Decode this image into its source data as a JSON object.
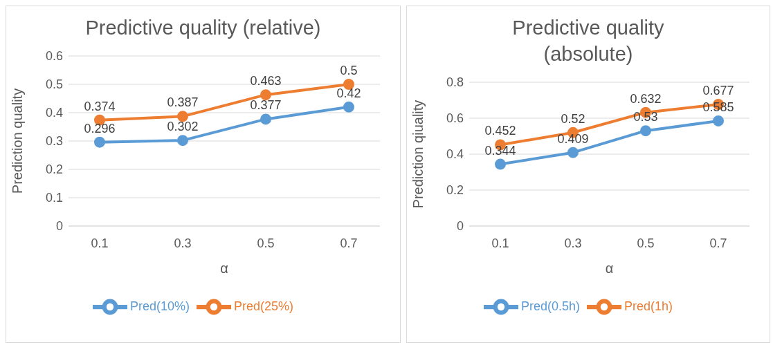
{
  "chart_data": [
    {
      "type": "line",
      "title": "Predictive quality (relative)",
      "xlabel": "α",
      "ylabel": "Prediction quality",
      "categories": [
        "0.1",
        "0.3",
        "0.5",
        "0.7"
      ],
      "series": [
        {
          "name": "Pred(10%)",
          "color": "#5b9bd5",
          "values": [
            0.296,
            0.302,
            0.377,
            0.42
          ]
        },
        {
          "name": "Pred(25%)",
          "color": "#ed7d31",
          "values": [
            0.374,
            0.387,
            0.463,
            0.5
          ]
        }
      ],
      "ylim": [
        0,
        0.6
      ],
      "yticks": [
        0,
        0.1,
        0.2,
        0.3,
        0.4,
        0.5,
        0.6
      ],
      "grid": "y",
      "legend": "bottom",
      "marker": "circle",
      "line_style": "solid",
      "data_labels": true
    },
    {
      "type": "line",
      "title": "Predictive quality (absolute)",
      "xlabel": "α",
      "ylabel": "Prediction qiuality",
      "categories": [
        "0.1",
        "0.3",
        "0.5",
        "0.7"
      ],
      "series": [
        {
          "name": "Pred(0.5h)",
          "color": "#5b9bd5",
          "values": [
            0.344,
            0.409,
            0.53,
            0.585
          ]
        },
        {
          "name": "Pred(1h)",
          "color": "#ed7d31",
          "values": [
            0.452,
            0.52,
            0.632,
            0.677
          ]
        }
      ],
      "ylim": [
        0,
        0.8
      ],
      "yticks": [
        0,
        0.2,
        0.4,
        0.6,
        0.8
      ],
      "grid": "y",
      "legend": "bottom",
      "marker": "circle",
      "line_style": "solid",
      "data_labels": true
    }
  ]
}
